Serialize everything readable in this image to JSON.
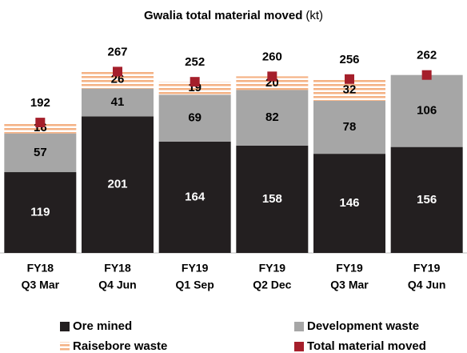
{
  "chart_data": {
    "type": "stacked-bar",
    "title": "Gwalia total material moved",
    "unit": "(kt)",
    "categories": [
      [
        "FY18",
        "Q3 Mar"
      ],
      [
        "FY18",
        "Q4 Jun"
      ],
      [
        "FY19",
        "Q1 Sep"
      ],
      [
        "FY19",
        "Q2 Dec"
      ],
      [
        "FY19",
        "Q3 Mar"
      ],
      [
        "FY19",
        "Q4 Jun"
      ]
    ],
    "series": [
      {
        "name": "Ore mined",
        "color": "#231f20",
        "values": [
          119,
          201,
          164,
          158,
          146,
          156
        ]
      },
      {
        "name": "Development waste",
        "color": "#a6a6a6",
        "values": [
          57,
          41,
          69,
          82,
          78,
          106
        ]
      },
      {
        "name": "Raisebore waste",
        "color": "#f4b183",
        "values": [
          16,
          26,
          19,
          20,
          32,
          null
        ]
      }
    ],
    "total": {
      "name": "Total material moved",
      "color": "#a51f2b",
      "values": [
        192,
        267,
        252,
        260,
        256,
        262
      ]
    },
    "ylim": [
      0,
      330
    ]
  }
}
